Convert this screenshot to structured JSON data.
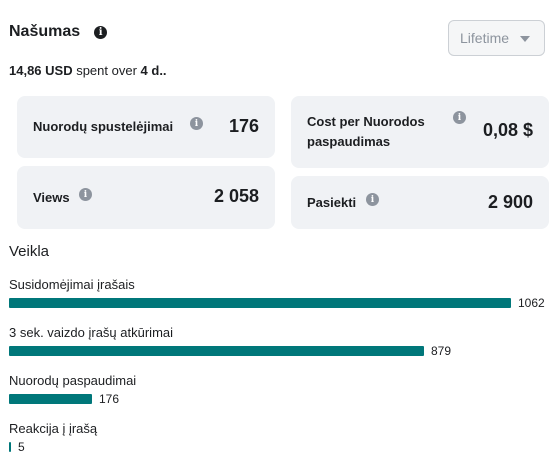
{
  "header": {
    "title": "Našumas",
    "dropdown_value": "Lifetime"
  },
  "summary": {
    "amount": "14,86 USD",
    "middle": " spent over ",
    "duration": "4 d.."
  },
  "cards": [
    {
      "label": "Nuorodų spustelėjimai",
      "value": "176"
    },
    {
      "label": "Cost per Nuorodos paspaudimas",
      "value": "0,08 $"
    },
    {
      "label": "Views",
      "value": "2 058"
    },
    {
      "label": "Pasiekti",
      "value": "2 900"
    }
  ],
  "activity": {
    "title": "Veikla",
    "max": 1062,
    "items": [
      {
        "label": "Susidomėjimai įrašais",
        "value": 1062,
        "value_text": "1062"
      },
      {
        "label": "3 sek. vaizdo įrašų atkūrimai",
        "value": 879,
        "value_text": "879"
      },
      {
        "label": "Nuorodų paspaudimai",
        "value": 176,
        "value_text": "176"
      },
      {
        "label": "Reakcija į įrašą",
        "value": 5,
        "value_text": "5"
      }
    ]
  },
  "colors": {
    "bar": "#00777a",
    "card_bg": "#f0f2f5"
  }
}
